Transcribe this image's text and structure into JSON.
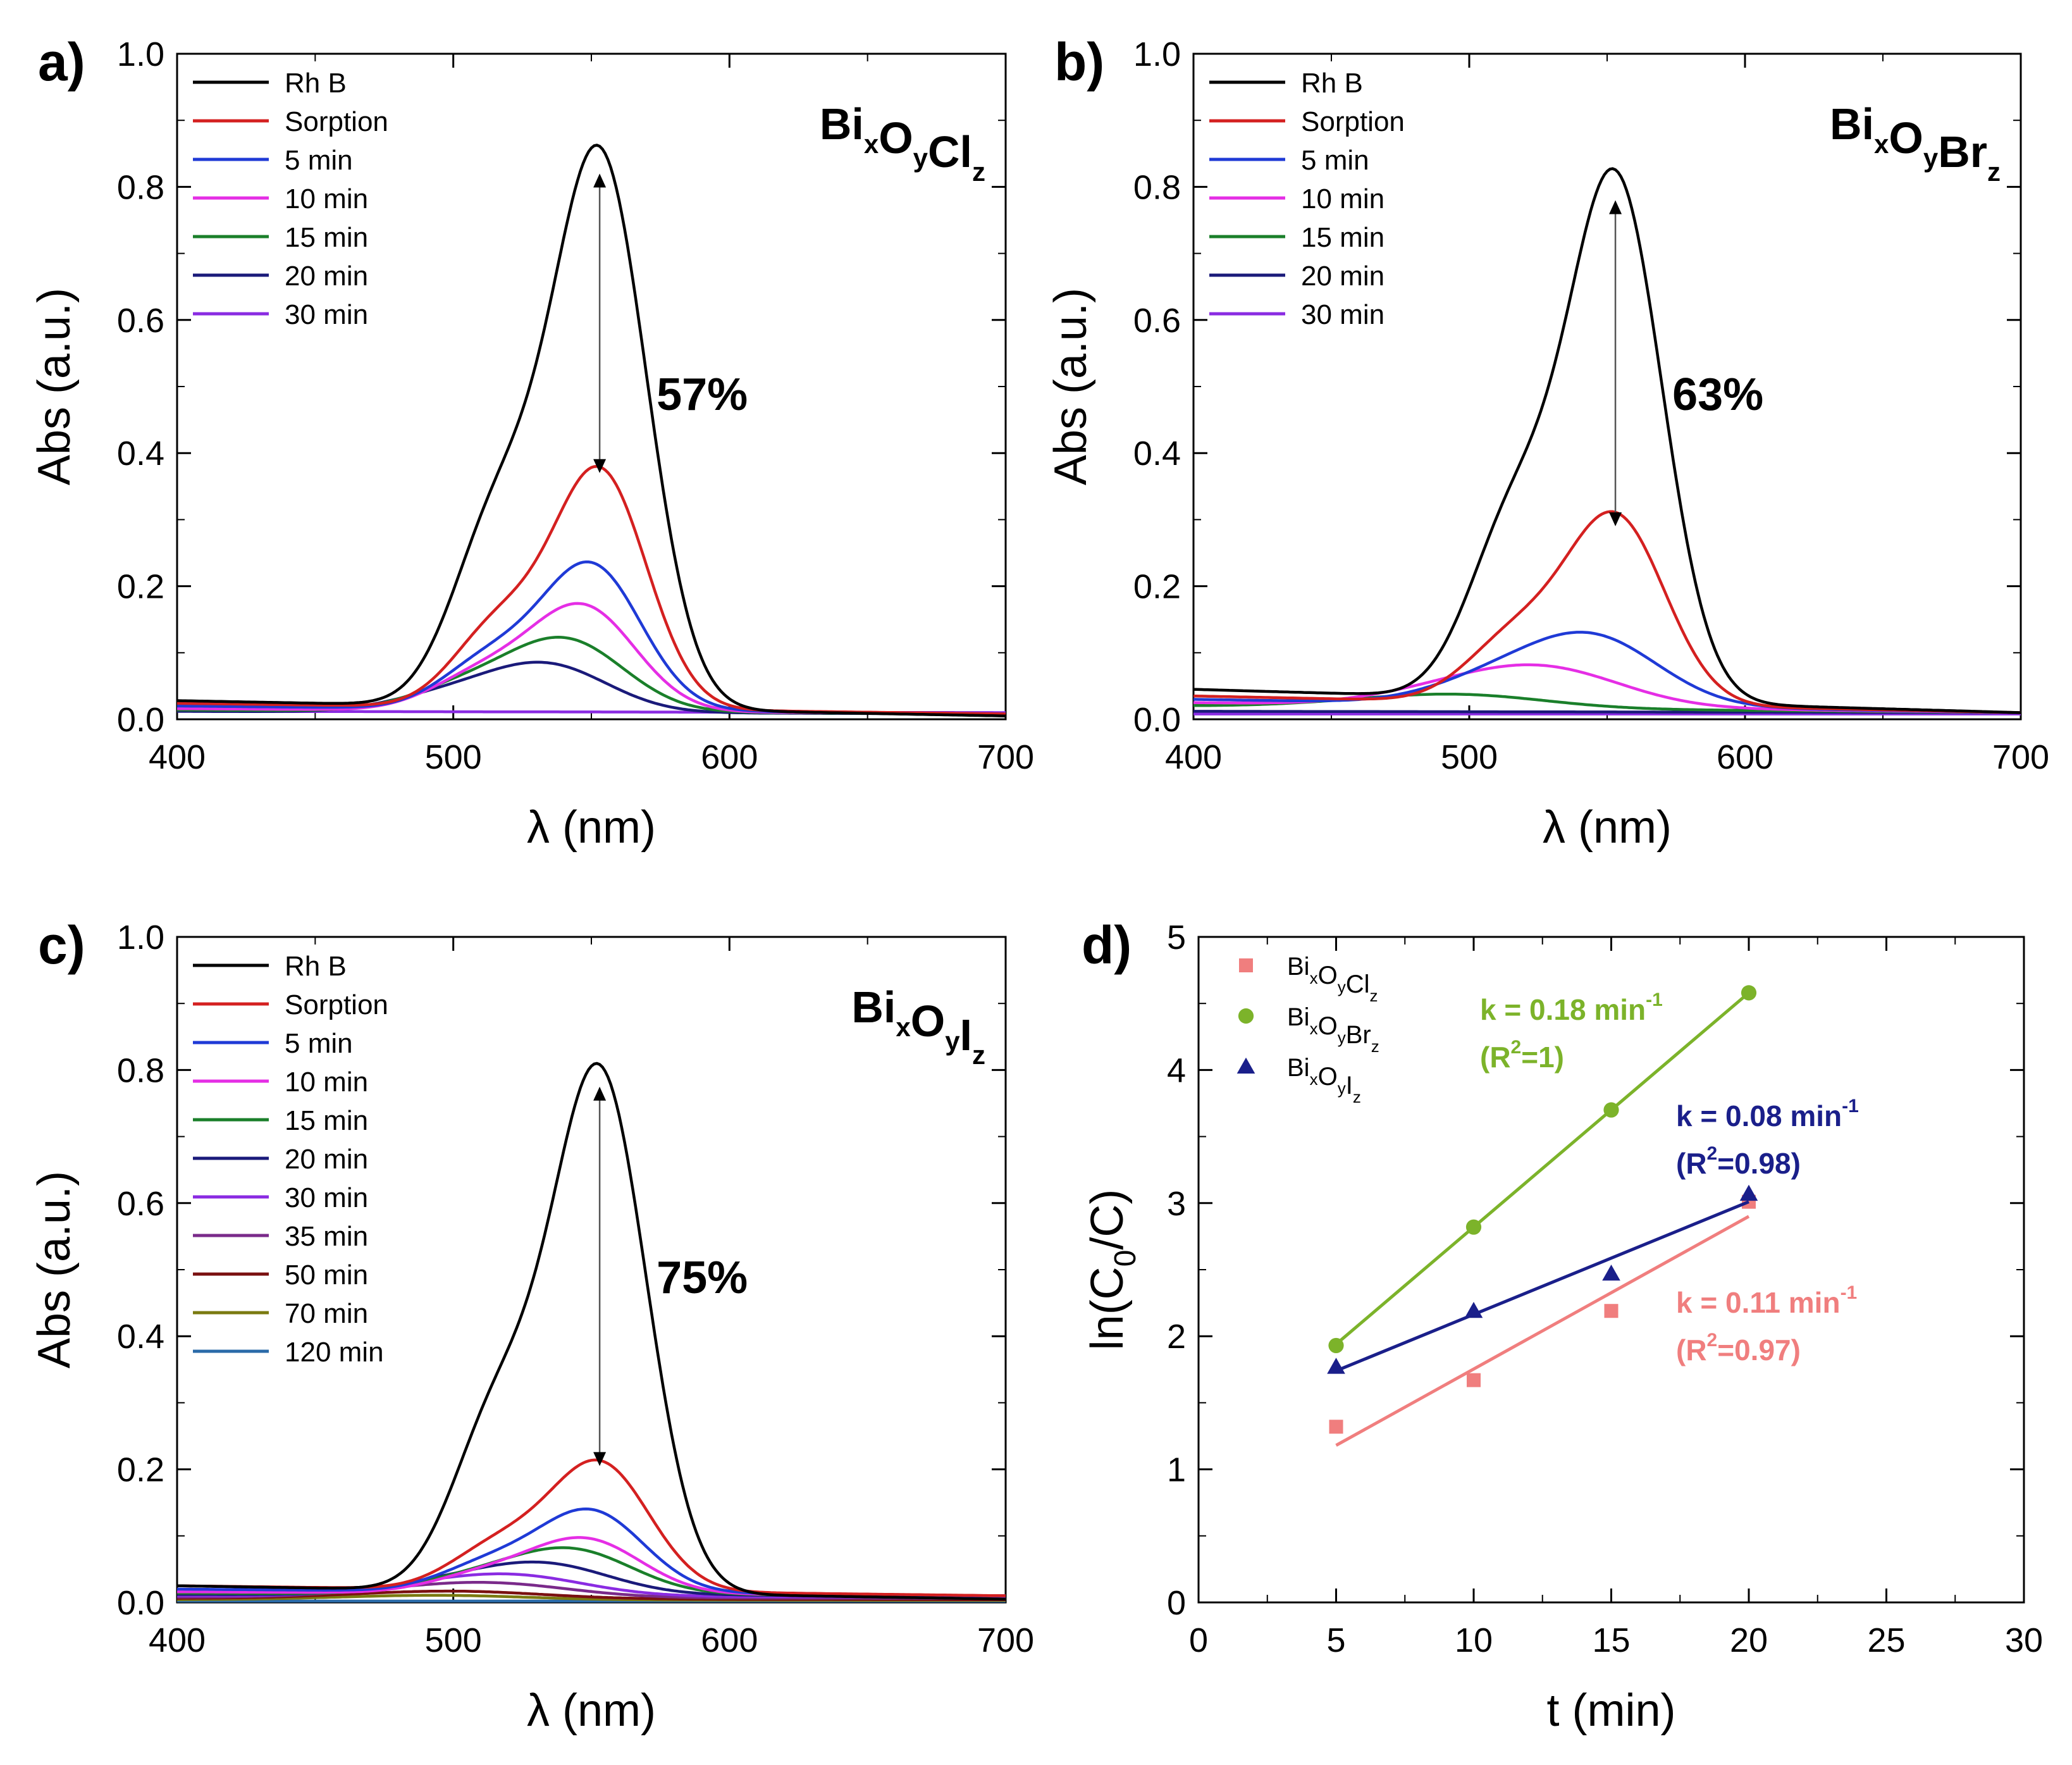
{
  "chart_data": [
    {
      "panel": "a)",
      "type": "line",
      "title": "BixOyClz",
      "sample": {
        "base": [
          "Bi",
          "O",
          "Cl"
        ],
        "subs": [
          "x",
          "y",
          "z"
        ]
      },
      "xlabel": "λ (nm)",
      "ylabel": "Abs (a.u.)",
      "xlim": [
        400,
        700
      ],
      "ylim": [
        0,
        1.0
      ],
      "xticks": [
        "400",
        "500",
        "600",
        "700"
      ],
      "yticks": [
        "0.0",
        "0.2",
        "0.4",
        "0.6",
        "0.8",
        "1.0"
      ],
      "annotation": "57%",
      "arrow": {
        "x": 553,
        "from": 0.82,
        "to": 0.37
      },
      "series": [
        {
          "name": "Rh B",
          "color": "#000000",
          "peak": 0.825,
          "center": 553,
          "width": 17,
          "blue_shift": 0,
          "baseline_left": 0.028,
          "baseline_right": 0.005
        },
        {
          "name": "Sorption",
          "color": "#d42020",
          "peak": 0.355,
          "center": 553,
          "width": 17,
          "blue_shift": 0,
          "baseline_left": 0.024,
          "baseline_right": 0.008
        },
        {
          "name": "5 min",
          "color": "#1f3ad6",
          "peak": 0.215,
          "center": 550,
          "width": 18,
          "blue_shift": 0,
          "baseline_left": 0.02,
          "baseline_right": 0.008
        },
        {
          "name": "10 min",
          "color": "#e52ee5",
          "peak": 0.155,
          "center": 547,
          "width": 19,
          "blue_shift": 0,
          "baseline_left": 0.016,
          "baseline_right": 0.008
        },
        {
          "name": "15 min",
          "color": "#1a7f2a",
          "peak": 0.105,
          "center": 541,
          "width": 21,
          "blue_shift": 0,
          "baseline_left": 0.014,
          "baseline_right": 0.008
        },
        {
          "name": "20 min",
          "color": "#1a1a7a",
          "peak": 0.07,
          "center": 534,
          "width": 22,
          "blue_shift": 0,
          "baseline_left": 0.012,
          "baseline_right": 0.008
        },
        {
          "name": "30 min",
          "color": "#8a2be2",
          "peak": 0.0,
          "center": 530,
          "width": 25,
          "blue_shift": 0,
          "baseline_left": 0.012,
          "baseline_right": 0.01
        }
      ]
    },
    {
      "panel": "b)",
      "type": "line",
      "title": "BixOyBrz",
      "sample": {
        "base": [
          "Bi",
          "O",
          "Br"
        ],
        "subs": [
          "x",
          "y",
          "z"
        ]
      },
      "xlabel": "λ (nm)",
      "ylabel": "Abs (a.u.)",
      "xlim": [
        400,
        700
      ],
      "ylim": [
        0,
        1.0
      ],
      "xticks": [
        "400",
        "500",
        "600",
        "700"
      ],
      "yticks": [
        "0.0",
        "0.2",
        "0.4",
        "0.6",
        "0.8",
        "1.0"
      ],
      "annotation": "63%",
      "arrow": {
        "x": 553,
        "from": 0.78,
        "to": 0.29
      },
      "series": [
        {
          "name": "Rh B",
          "color": "#000000",
          "peak": 0.78,
          "center": 553,
          "width": 17,
          "blue_shift": 0,
          "baseline_left": 0.045,
          "baseline_right": 0.01
        },
        {
          "name": "Sorption",
          "color": "#d42020",
          "peak": 0.28,
          "center": 553,
          "width": 18,
          "blue_shift": 0,
          "baseline_left": 0.035,
          "baseline_right": 0.01
        },
        {
          "name": "5 min",
          "color": "#1f3ad6",
          "peak": 0.1,
          "center": 545,
          "width": 24,
          "blue_shift": 0,
          "baseline_left": 0.03,
          "baseline_right": 0.01
        },
        {
          "name": "10 min",
          "color": "#e52ee5",
          "peak": 0.055,
          "center": 528,
          "width": 28,
          "blue_shift": 0,
          "baseline_left": 0.025,
          "baseline_right": 0.01
        },
        {
          "name": "15 min",
          "color": "#1a7f2a",
          "peak": 0.018,
          "center": 500,
          "width": 30,
          "blue_shift": 0,
          "baseline_left": 0.02,
          "baseline_right": 0.01
        },
        {
          "name": "20 min",
          "color": "#1a1a7a",
          "peak": 0.0,
          "center": 500,
          "width": 30,
          "blue_shift": 0,
          "baseline_left": 0.012,
          "baseline_right": 0.01
        },
        {
          "name": "30 min",
          "color": "#8a2be2",
          "peak": 0.0,
          "center": 500,
          "width": 30,
          "blue_shift": 0,
          "baseline_left": 0.008,
          "baseline_right": 0.008
        }
      ]
    },
    {
      "panel": "c)",
      "type": "line",
      "title": "BixOyIz",
      "sample": {
        "base": [
          "Bi",
          "O",
          "I"
        ],
        "subs": [
          "x",
          "y",
          "z"
        ]
      },
      "xlabel": "λ (nm)",
      "ylabel": "Abs (a.u.)",
      "xlim": [
        400,
        700
      ],
      "ylim": [
        0,
        1.0
      ],
      "xticks": [
        "400",
        "500",
        "600",
        "700"
      ],
      "yticks": [
        "0.0",
        "0.2",
        "0.4",
        "0.6",
        "0.8",
        "1.0"
      ],
      "annotation": "75%",
      "arrow": {
        "x": 553,
        "from": 0.775,
        "to": 0.205
      },
      "series": [
        {
          "name": "Rh B",
          "color": "#000000",
          "peak": 0.775,
          "center": 553,
          "width": 17,
          "blue_shift": 0,
          "baseline_left": 0.025,
          "baseline_right": 0.005
        },
        {
          "name": "Sorption",
          "color": "#d42020",
          "peak": 0.19,
          "center": 553,
          "width": 18,
          "blue_shift": 0,
          "baseline_left": 0.025,
          "baseline_right": 0.01
        },
        {
          "name": "5 min",
          "color": "#1f3ad6",
          "peak": 0.12,
          "center": 550,
          "width": 19,
          "blue_shift": 0,
          "baseline_left": 0.02,
          "baseline_right": 0.01
        },
        {
          "name": "10 min",
          "color": "#e52ee5",
          "peak": 0.08,
          "center": 548,
          "width": 20,
          "blue_shift": 0,
          "baseline_left": 0.016,
          "baseline_right": 0.01
        },
        {
          "name": "15 min",
          "color": "#1a7f2a",
          "peak": 0.065,
          "center": 543,
          "width": 22,
          "blue_shift": 0,
          "baseline_left": 0.014,
          "baseline_right": 0.01
        },
        {
          "name": "20 min",
          "color": "#1a1a7a",
          "peak": 0.045,
          "center": 533,
          "width": 24,
          "blue_shift": 0,
          "baseline_left": 0.012,
          "baseline_right": 0.01
        },
        {
          "name": "30 min",
          "color": "#8a2be2",
          "peak": 0.03,
          "center": 522,
          "width": 26,
          "blue_shift": 0,
          "baseline_left": 0.01,
          "baseline_right": 0.008
        },
        {
          "name": "35 min",
          "color": "#7a2a8a",
          "peak": 0.02,
          "center": 515,
          "width": 28,
          "blue_shift": 0,
          "baseline_left": 0.008,
          "baseline_right": 0.006
        },
        {
          "name": "50 min",
          "color": "#7a1010",
          "peak": 0.01,
          "center": 505,
          "width": 30,
          "blue_shift": 0,
          "baseline_left": 0.006,
          "baseline_right": 0.004
        },
        {
          "name": "70 min",
          "color": "#7a7a10",
          "peak": 0.006,
          "center": 500,
          "width": 30,
          "blue_shift": 0,
          "baseline_left": 0.004,
          "baseline_right": 0.003
        },
        {
          "name": "120 min",
          "color": "#2a6aa8",
          "peak": 0.0,
          "center": 500,
          "width": 30,
          "blue_shift": 0,
          "baseline_left": 0.002,
          "baseline_right": 0.002
        }
      ]
    },
    {
      "panel": "d)",
      "type": "scatter",
      "xlabel": "t (min)",
      "ylabel": "ln(C0/C)",
      "ylabel_parts": [
        "ln(C",
        "0",
        "/C)"
      ],
      "xlim": [
        0,
        30
      ],
      "ylim": [
        0,
        5
      ],
      "xticks": [
        "0",
        "5",
        "10",
        "15",
        "20",
        "25",
        "30"
      ],
      "yticks": [
        "0",
        "1",
        "2",
        "3",
        "4",
        "5"
      ],
      "series": [
        {
          "name": "BixOyClz",
          "base": [
            "Bi",
            "O",
            "Cl"
          ],
          "subs": [
            "x",
            "y",
            "z"
          ],
          "color": "#f07e7e",
          "marker": "square",
          "x": [
            5,
            10,
            15,
            20
          ],
          "y": [
            1.32,
            1.67,
            2.19,
            3.01
          ],
          "fit": {
            "x": [
              5,
              20
            ],
            "y": [
              1.18,
              2.9
            ]
          },
          "k_label": "k = 0.11 min",
          "k_sup": "-1",
          "r2_label": [
            "(R",
            "2",
            "=0.97)"
          ]
        },
        {
          "name": "BixOyBrz",
          "base": [
            "Bi",
            "O",
            "Br"
          ],
          "subs": [
            "x",
            "y",
            "z"
          ],
          "color": "#7cb32a",
          "marker": "circle",
          "x": [
            5,
            10,
            15,
            20
          ],
          "y": [
            1.93,
            2.82,
            3.7,
            4.58
          ],
          "fit": {
            "x": [
              5,
              20
            ],
            "y": [
              1.94,
              4.58
            ]
          },
          "k_label": "k = 0.18 min",
          "k_sup": "-1",
          "r2_label": [
            "(R",
            "2",
            "=1)"
          ]
        },
        {
          "name": "BixOyIz",
          "base": [
            "Bi",
            "O",
            "I"
          ],
          "subs": [
            "x",
            "y",
            "z"
          ],
          "color": "#1a1f8a",
          "marker": "triangle",
          "x": [
            5,
            10,
            15,
            20
          ],
          "y": [
            1.77,
            2.19,
            2.47,
            3.07
          ],
          "fit": {
            "x": [
              5,
              20
            ],
            "y": [
              1.74,
              3.01
            ]
          },
          "k_label": "k = 0.08 min",
          "k_sup": "-1",
          "r2_label": [
            "(R",
            "2",
            "=0.98)"
          ]
        }
      ]
    }
  ]
}
